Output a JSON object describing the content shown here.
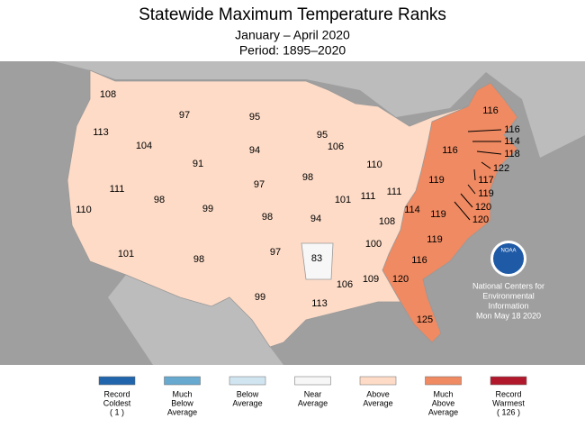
{
  "title": "Statewide Maximum Temperature Ranks",
  "subtitle": [
    "January – April 2020",
    "Period: 1895–2020"
  ],
  "legend": [
    {
      "lines": [
        "Record",
        "Coldest",
        "( 1 )"
      ],
      "color": "#2166ac"
    },
    {
      "lines": [
        "Much",
        "Below",
        "Average"
      ],
      "color": "#67a9cf"
    },
    {
      "lines": [
        "Below",
        "Average"
      ],
      "color": "#d1e5f0"
    },
    {
      "lines": [
        "Near",
        "Average"
      ],
      "color": "#f7f7f7"
    },
    {
      "lines": [
        "Above",
        "Average"
      ],
      "color": "#fddbc7"
    },
    {
      "lines": [
        "Much",
        "Above",
        "Average"
      ],
      "color": "#ef8a62"
    },
    {
      "lines": [
        "Record",
        "Warmest",
        "( 126 )"
      ],
      "color": "#b2182b"
    }
  ],
  "states": [
    {
      "rank": 108,
      "class": 4
    },
    {
      "rank": 113,
      "class": 4
    },
    {
      "rank": 104,
      "class": 4
    },
    {
      "rank": 97,
      "class": 4
    },
    {
      "rank": 91,
      "class": 4
    },
    {
      "rank": 95,
      "class": 4
    },
    {
      "rank": 94,
      "class": 4
    },
    {
      "rank": 97,
      "class": 4
    },
    {
      "rank": 95,
      "class": 4
    },
    {
      "rank": 98,
      "class": 4
    },
    {
      "rank": 106,
      "class": 4
    },
    {
      "rank": 110,
      "class": 4
    },
    {
      "rank": 111,
      "class": 4
    },
    {
      "rank": 98,
      "class": 4
    },
    {
      "rank": 99,
      "class": 4
    },
    {
      "rank": 98,
      "class": 4
    },
    {
      "rank": 94,
      "class": 4
    },
    {
      "rank": 101,
      "class": 4
    },
    {
      "rank": 111,
      "class": 4
    },
    {
      "rank": 111,
      "class": 4
    },
    {
      "rank": 110,
      "class": 4
    },
    {
      "rank": 101,
      "class": 4
    },
    {
      "rank": 98,
      "class": 4
    },
    {
      "rank": 97,
      "class": 4
    },
    {
      "rank": 99,
      "class": 4
    },
    {
      "rank": 83,
      "class": 3
    },
    {
      "rank": 113,
      "class": 4
    },
    {
      "rank": 106,
      "class": 4
    },
    {
      "rank": 109,
      "class": 4
    },
    {
      "rank": 100,
      "class": 4
    },
    {
      "rank": 108,
      "class": 4
    },
    {
      "rank": 114,
      "class": 5
    },
    {
      "rank": 119,
      "class": 5
    },
    {
      "rank": 119,
      "class": 5
    },
    {
      "rank": 116,
      "class": 5
    },
    {
      "rank": 116,
      "class": 5
    },
    {
      "rank": 119,
      "class": 5
    },
    {
      "rank": 116,
      "class": 5
    },
    {
      "rank": 120,
      "class": 5
    },
    {
      "rank": 125,
      "class": 5
    },
    {
      "rank": 116,
      "class": 5
    },
    {
      "rank": 114,
      "class": 5
    },
    {
      "rank": 118,
      "class": 5
    },
    {
      "rank": 122,
      "class": 5
    },
    {
      "rank": 117,
      "class": 5
    },
    {
      "rank": 119,
      "class": 5
    },
    {
      "rank": 120,
      "class": 5
    },
    {
      "rank": 120,
      "class": 5
    }
  ],
  "logo": "NOAA",
  "credit": [
    "National Centers for",
    "Environmental",
    "Information",
    "Mon May 18 2020"
  ]
}
